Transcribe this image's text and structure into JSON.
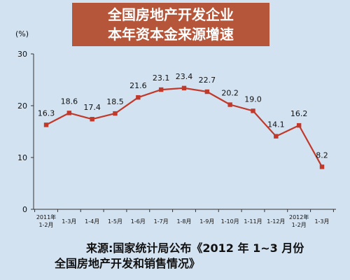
{
  "unit_label": "(%)",
  "title_lines": [
    "全国房地产开发企业",
    "本年资本金来源增速"
  ],
  "source_lines": [
    "来源:国家统计局公布《2012 年 1~3 月份",
    "全国房地产开发和销售情况》"
  ],
  "colors": {
    "line": "#c0392b",
    "title_bg": "#b5563a",
    "background": "#d3e2f0",
    "axis": "#333333"
  },
  "chart_data": {
    "type": "line",
    "title": "全国房地产开发企业本年资本金来源增速",
    "ylabel": "(%)",
    "ylim": [
      0,
      30
    ],
    "yticks": [
      0,
      10,
      20,
      30
    ],
    "grid": false,
    "categories": [
      [
        "2011年",
        "1-2月"
      ],
      [
        "1-3月"
      ],
      [
        "1-4月"
      ],
      [
        "1-5月"
      ],
      [
        "1-6月"
      ],
      [
        "1-7月"
      ],
      [
        "1-8月"
      ],
      [
        "1-9月"
      ],
      [
        "1-10月"
      ],
      [
        "1-11月"
      ],
      [
        "1-12月"
      ],
      [
        "2012年",
        "1-2月"
      ],
      [
        "1-3月"
      ]
    ],
    "values": [
      16.3,
      18.6,
      17.4,
      18.5,
      21.6,
      23.1,
      23.4,
      22.7,
      20.2,
      19.0,
      14.1,
      16.2,
      8.2
    ],
    "value_labels": [
      "16.3",
      "18.6",
      "17.4",
      "18.5",
      "21.6",
      "23.1",
      "23.4",
      "22.7",
      "20.2",
      "19.0",
      "14.1",
      "16.2",
      "8.2"
    ]
  }
}
